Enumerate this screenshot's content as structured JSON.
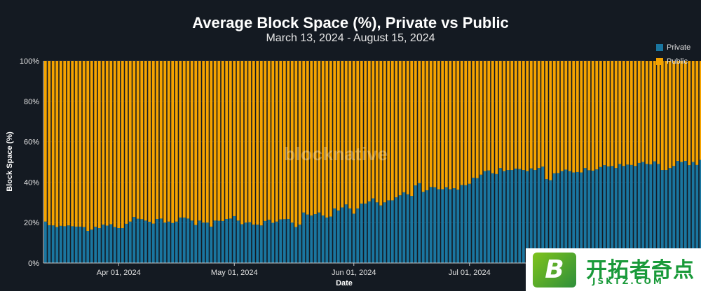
{
  "title": "Average Block Space (%), Private vs Public",
  "subtitle": "March 13, 2024 - August 15, 2024",
  "watermark": "blocknative",
  "colors": {
    "background": "#141a22",
    "private": "#1a76a0",
    "public": "#f5a300",
    "text": "#ffffff"
  },
  "legend": [
    {
      "label": "Private",
      "color": "#1a76a0"
    },
    {
      "label": "Public",
      "color": "#f5a300"
    }
  ],
  "overlay_logo": {
    "letter": "B",
    "text": "开拓者奇点",
    "url_text": "JSKTZ.COM"
  },
  "chart_data": {
    "type": "bar",
    "stacked": true,
    "title": "Average Block Space (%), Private vs Public",
    "subtitle": "March 13, 2024 - August 15, 2024",
    "xlabel": "Date",
    "ylabel": "Block Space (%)",
    "ylim": [
      0,
      100
    ],
    "y_ticks": [
      "0%",
      "20%",
      "40%",
      "60%",
      "80%",
      "100%"
    ],
    "x_ticks": [
      "Apr 01, 2024",
      "May 01, 2024",
      "Jun 01, 2024",
      "Jul 01, 2024"
    ],
    "x_range": [
      "2024-03-13",
      "2024-08-15"
    ],
    "legend_position": "top-right",
    "series": [
      {
        "name": "Private",
        "values": [
          20.5,
          18.7,
          18.6,
          17.8,
          18.4,
          18.2,
          18.6,
          18.2,
          18.0,
          18.0,
          17.8,
          15.9,
          16.5,
          17.9,
          17.3,
          19.0,
          18.5,
          19.2,
          17.8,
          17.3,
          17.3,
          19.4,
          20.5,
          22.8,
          21.9,
          21.7,
          21.0,
          20.4,
          19.5,
          21.8,
          22.0,
          20.0,
          20.5,
          19.8,
          20.5,
          22.5,
          22.5,
          22.0,
          21.0,
          18.8,
          21.0,
          20.0,
          20.0,
          18.0,
          21.0,
          20.9,
          20.8,
          21.8,
          22.0,
          23.2,
          21.0,
          19.2,
          20.0,
          20.2,
          19.0,
          19.0,
          18.6,
          20.8,
          21.4,
          19.9,
          20.5,
          21.6,
          21.7,
          21.8,
          20.0,
          17.8,
          19.0,
          25.0,
          24.0,
          23.5,
          24.2,
          25.0,
          23.5,
          22.5,
          23.0,
          27.0,
          26.0,
          27.5,
          29.0,
          27.0,
          24.4,
          27.0,
          29.4,
          29.4,
          30.5,
          32.0,
          30.0,
          28.5,
          30.0,
          31.0,
          31.0,
          32.5,
          33.5,
          35.0,
          34.0,
          33.2,
          38.4,
          39.5,
          35.2,
          36.0,
          37.6,
          37.5,
          36.5,
          36.5,
          37.5,
          36.5,
          37.0,
          36.3,
          38.6,
          38.5,
          39.2,
          42.2,
          42.0,
          43.7,
          45.5,
          45.8,
          44.4,
          44.0,
          47.0,
          45.5,
          46.0,
          46.0,
          46.7,
          46.5,
          46.0,
          45.5,
          46.8,
          46.0,
          47.0,
          47.7,
          41.5,
          41.0,
          44.4,
          44.5,
          45.5,
          46.2,
          45.5,
          44.8,
          45.0,
          44.8,
          47.0,
          45.9,
          45.7,
          46.3,
          47.5,
          48.4,
          47.8,
          48.0,
          47.0,
          49.0,
          48.0,
          48.7,
          48.5,
          48.0,
          49.5,
          50.0,
          49.0,
          48.8,
          50.3,
          49.0,
          46.0,
          46.0,
          47.0,
          48.0,
          50.5,
          50.0,
          50.5,
          48.4,
          50.0,
          48.5,
          51.0,
          51.7,
          50.0,
          51.5
        ]
      },
      {
        "name": "Public",
        "values": [
          79.5,
          81.3,
          81.4,
          82.2,
          81.6,
          81.8,
          81.4,
          81.8,
          82.0,
          82.0,
          82.2,
          84.1,
          83.5,
          82.1,
          82.7,
          81.0,
          81.5,
          80.8,
          82.2,
          82.7,
          82.7,
          80.6,
          79.5,
          77.2,
          78.1,
          78.3,
          79.0,
          79.6,
          80.5,
          78.2,
          78.0,
          80.0,
          79.5,
          80.2,
          79.5,
          77.5,
          77.5,
          78.0,
          79.0,
          81.2,
          79.0,
          80.0,
          80.0,
          82.0,
          79.0,
          79.1,
          79.2,
          78.2,
          78.0,
          76.8,
          79.0,
          80.8,
          80.0,
          79.8,
          81.0,
          81.0,
          81.4,
          79.2,
          78.6,
          80.1,
          79.5,
          78.4,
          78.3,
          78.2,
          80.0,
          82.2,
          81.0,
          75.0,
          76.0,
          76.5,
          75.8,
          75.0,
          76.5,
          77.5,
          77.0,
          73.0,
          74.0,
          72.5,
          71.0,
          73.0,
          75.6,
          73.0,
          70.6,
          70.6,
          69.5,
          68.0,
          70.0,
          71.5,
          70.0,
          69.0,
          69.0,
          67.5,
          66.5,
          65.0,
          66.0,
          66.8,
          61.6,
          60.5,
          64.8,
          64.0,
          62.4,
          62.5,
          63.5,
          63.5,
          62.5,
          63.5,
          63.0,
          63.7,
          61.4,
          61.5,
          60.8,
          57.8,
          58.0,
          56.3,
          54.5,
          54.2,
          55.6,
          56.0,
          53.0,
          54.5,
          54.0,
          54.0,
          53.3,
          53.5,
          54.0,
          54.5,
          53.2,
          54.0,
          53.0,
          52.3,
          58.5,
          59.0,
          55.6,
          55.5,
          54.5,
          53.8,
          54.5,
          55.2,
          55.0,
          55.2,
          53.0,
          54.1,
          54.3,
          53.7,
          52.5,
          51.6,
          52.2,
          52.0,
          53.0,
          51.0,
          52.0,
          51.3,
          51.5,
          52.0,
          50.5,
          50.0,
          51.0,
          51.2,
          49.7,
          51.0,
          54.0,
          54.0,
          53.0,
          52.0,
          49.5,
          50.0,
          49.5,
          51.6,
          50.0,
          51.5,
          49.0,
          48.3,
          50.0,
          48.5
        ]
      }
    ]
  }
}
